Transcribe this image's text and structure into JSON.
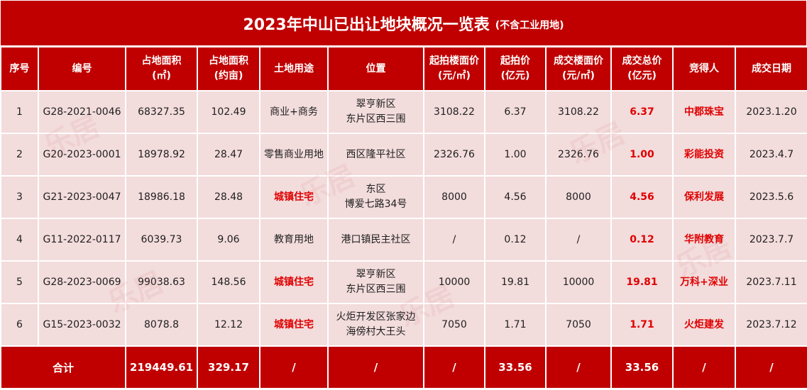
{
  "title": {
    "main": "2023年中山已出让地块概况一览表",
    "sub": "(不含工业用地)"
  },
  "colors": {
    "header_bg": "#c00000",
    "row_bg": "#f3dcdc",
    "highlight_text": "#e00000"
  },
  "columns": [
    {
      "line1": "序号",
      "line2": ""
    },
    {
      "line1": "编号",
      "line2": ""
    },
    {
      "line1": "占地面积",
      "line2": "(㎡)"
    },
    {
      "line1": "占地面积",
      "line2": "(约亩)"
    },
    {
      "line1": "土地用途",
      "line2": ""
    },
    {
      "line1": "位置",
      "line2": ""
    },
    {
      "line1": "起拍楼面价",
      "line2": "(元/㎡)"
    },
    {
      "line1": "起拍价",
      "line2": "(亿元)"
    },
    {
      "line1": "成交楼面价",
      "line2": "(元/㎡)"
    },
    {
      "line1": "成交总价",
      "line2": "(亿元)"
    },
    {
      "line1": "竞得人",
      "line2": ""
    },
    {
      "line1": "成交日期",
      "line2": ""
    }
  ],
  "rows": [
    {
      "no": "1",
      "code": "G28-2021-0046",
      "area_sqm": "68327.35",
      "area_mu": "102.49",
      "use": "商业+商务",
      "use_highlight": false,
      "location_1": "翠亨新区",
      "location_2": "东片区西三围",
      "start_floor_price": "3108.22",
      "start_price": "6.37",
      "deal_floor_price": "3108.22",
      "deal_total": "6.37",
      "winner": "中郡珠宝",
      "date": "2023.1.20"
    },
    {
      "no": "2",
      "code": "G20-2023-0001",
      "area_sqm": "18978.92",
      "area_mu": "28.47",
      "use": "零售商业用地",
      "use_highlight": false,
      "location_1": "西区隆平社区",
      "location_2": "",
      "start_floor_price": "2326.76",
      "start_price": "1.00",
      "deal_floor_price": "2326.76",
      "deal_total": "1.00",
      "winner": "彩能投资",
      "date": "2023.4.7"
    },
    {
      "no": "3",
      "code": "G21-2023-0047",
      "area_sqm": "18986.18",
      "area_mu": "28.48",
      "use": "城镇住宅",
      "use_highlight": true,
      "location_1": "东区",
      "location_2": "博爱七路34号",
      "start_floor_price": "8000",
      "start_price": "4.56",
      "deal_floor_price": "8000",
      "deal_total": "4.56",
      "winner": "保利发展",
      "date": "2023.5.6"
    },
    {
      "no": "4",
      "code": "G11-2022-0117",
      "area_sqm": "6039.73",
      "area_mu": "9.06",
      "use": "教育用地",
      "use_highlight": false,
      "location_1": "港口镇民主社区",
      "location_2": "",
      "start_floor_price": "/",
      "start_price": "0.12",
      "deal_floor_price": "/",
      "deal_total": "0.12",
      "winner": "华附教育",
      "date": "2023.7.7"
    },
    {
      "no": "5",
      "code": "G28-2023-0069",
      "area_sqm": "99038.63",
      "area_mu": "148.56",
      "use": "城镇住宅",
      "use_highlight": true,
      "location_1": "翠亨新区",
      "location_2": "东片区西三围",
      "start_floor_price": "10000",
      "start_price": "19.81",
      "deal_floor_price": "10000",
      "deal_total": "19.81",
      "winner": "万科+深业",
      "date": "2023.7.11"
    },
    {
      "no": "6",
      "code": "G15-2023-0032",
      "area_sqm": "8078.8",
      "area_mu": "12.12",
      "use": "城镇住宅",
      "use_highlight": true,
      "location_1": "火炬开发区张家边",
      "location_2": "海傍村大王头",
      "start_floor_price": "7050",
      "start_price": "1.71",
      "deal_floor_price": "7050",
      "deal_total": "1.71",
      "winner": "火炬建发",
      "date": "2023.7.12"
    }
  ],
  "total": {
    "label": "合计",
    "area_sqm": "219449.61",
    "area_mu": "329.17",
    "use": "/",
    "location": "/",
    "start_floor_price": "/",
    "start_price": "33.56",
    "deal_floor_price": "/",
    "deal_total": "33.56",
    "winner": "/",
    "date": "/"
  },
  "watermark": "乐居"
}
